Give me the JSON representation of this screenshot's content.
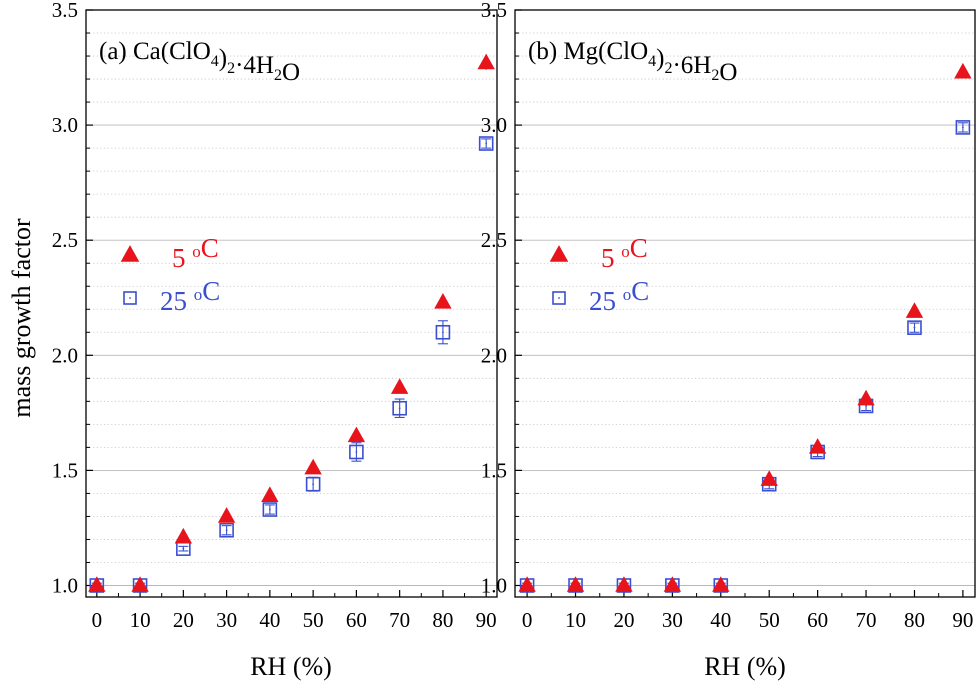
{
  "figure": {
    "ylabel": "mass growth factor",
    "xlabel": "RH (%)"
  },
  "colors": {
    "series_5C": "#e8141c",
    "series_25C": "#3a4fd0",
    "grid_major": "#b9b9b9",
    "grid_minor": "#c4c4c4"
  },
  "legend": {
    "marker_5C": "filled-triangle",
    "marker_25C": "open-square",
    "label_5C_num": "5 ",
    "label_5C_sup": "o",
    "label_5C_unit": "C",
    "label_25C_num": "25 ",
    "label_25C_sup": "o",
    "label_25C_unit": "C"
  },
  "panels": [
    {
      "title_parts": {
        "prefix": "(a) Ca(ClO",
        "sub1": "4",
        "mid": ")",
        "sub2": "2",
        "suffix": "·4H",
        "sub3": "2",
        "end": "O"
      }
    },
    {
      "title_parts": {
        "prefix": "(b) Mg(ClO",
        "sub1": "4",
        "mid": ")",
        "sub2": "2",
        "suffix": "·6H",
        "sub3": "2",
        "end": "O"
      }
    }
  ],
  "chart_data": [
    {
      "type": "scatter",
      "title": "(a) Ca(ClO4)2·4H2O",
      "xlabel": "RH (%)",
      "ylabel": "mass growth factor",
      "xlim": [
        -2.5,
        92.5
      ],
      "ylim": [
        0.95,
        3.5
      ],
      "xticks": [
        0,
        10,
        20,
        30,
        40,
        50,
        60,
        70,
        80,
        90
      ],
      "yticks": [
        1.0,
        1.5,
        2.0,
        2.5,
        3.0,
        3.5
      ],
      "ytick_labels": [
        "1.0",
        "1.5",
        "2.0",
        "2.5",
        "3.0",
        "3.5"
      ],
      "grid": "horizontal major solid + minor dotted",
      "legend_position": "left-middle",
      "series": [
        {
          "name": "5 oC",
          "marker": "triangle",
          "x": [
            0,
            10,
            20,
            30,
            40,
            50,
            60,
            70,
            80,
            90
          ],
          "y": [
            1.0,
            1.0,
            1.21,
            1.3,
            1.39,
            1.51,
            1.65,
            1.86,
            2.23,
            3.27
          ],
          "err": [
            0.01,
            0.01,
            0.01,
            0.01,
            0.01,
            0.01,
            0.01,
            0.01,
            0.01,
            0.03
          ]
        },
        {
          "name": "25 oC",
          "marker": "square-open",
          "x": [
            0,
            10,
            20,
            30,
            40,
            50,
            60,
            70,
            80,
            90
          ],
          "y": [
            1.0,
            1.0,
            1.16,
            1.24,
            1.33,
            1.44,
            1.58,
            1.77,
            2.1,
            2.92
          ],
          "err": [
            0.01,
            0.01,
            0.01,
            0.02,
            0.02,
            0.03,
            0.04,
            0.04,
            0.05,
            0.02
          ]
        }
      ]
    },
    {
      "type": "scatter",
      "title": "(b) Mg(ClO4)2·6H2O",
      "xlabel": "RH (%)",
      "ylabel": "",
      "xlim": [
        -2.5,
        92.5
      ],
      "ylim": [
        0.95,
        3.5
      ],
      "xticks": [
        0,
        10,
        20,
        30,
        40,
        50,
        60,
        70,
        80,
        90
      ],
      "yticks": [
        1.0,
        1.5,
        2.0,
        2.5,
        3.0,
        3.5
      ],
      "ytick_labels": [
        "1.0",
        "1.5",
        "2.0",
        "2.5",
        "3.0",
        "3.5"
      ],
      "grid": "horizontal major solid + minor dotted",
      "legend_position": "left-middle",
      "series": [
        {
          "name": "5 oC",
          "marker": "triangle",
          "x": [
            0,
            10,
            20,
            30,
            40,
            50,
            60,
            70,
            80,
            90
          ],
          "y": [
            1.0,
            1.0,
            1.0,
            1.0,
            1.0,
            1.46,
            1.6,
            1.81,
            2.19,
            3.23
          ],
          "err": [
            0.01,
            0.01,
            0.01,
            0.01,
            0.01,
            0.01,
            0.01,
            0.01,
            0.01,
            0.01
          ]
        },
        {
          "name": "25 oC",
          "marker": "square-open",
          "x": [
            0,
            10,
            20,
            30,
            40,
            50,
            60,
            70,
            80,
            90
          ],
          "y": [
            1.0,
            1.0,
            1.0,
            1.0,
            1.0,
            1.44,
            1.58,
            1.78,
            2.12,
            2.99
          ],
          "err": [
            0.01,
            0.01,
            0.01,
            0.01,
            0.01,
            0.02,
            0.02,
            0.02,
            0.02,
            0.02
          ]
        }
      ]
    }
  ]
}
